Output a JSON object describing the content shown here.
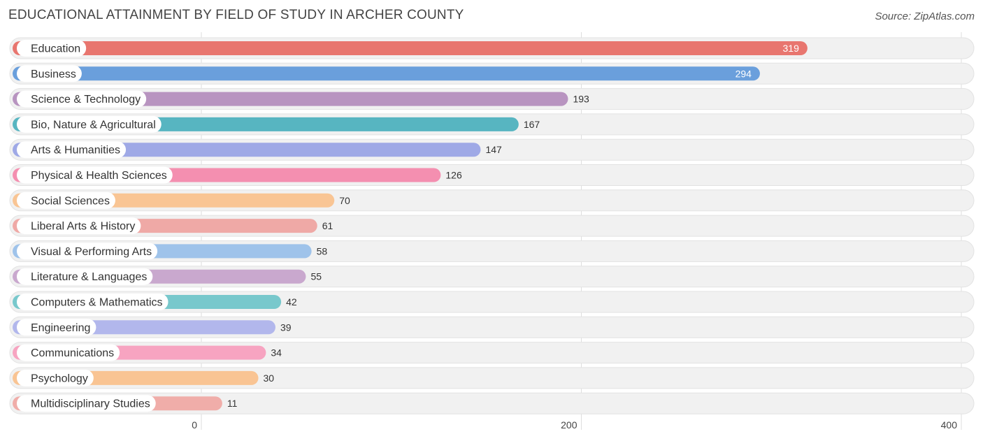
{
  "title": "EDUCATIONAL ATTAINMENT BY FIELD OF STUDY IN ARCHER COUNTY",
  "source": "Source: ZipAtlas.com",
  "chart_data": {
    "type": "bar",
    "orientation": "horizontal",
    "title": "EDUCATIONAL ATTAINMENT BY FIELD OF STUDY IN ARCHER COUNTY",
    "categories": [
      "Education",
      "Business",
      "Science & Technology",
      "Bio, Nature & Agricultural",
      "Arts & Humanities",
      "Physical & Health Sciences",
      "Social Sciences",
      "Liberal Arts & History",
      "Visual & Performing Arts",
      "Literature & Languages",
      "Computers & Mathematics",
      "Engineering",
      "Communications",
      "Psychology",
      "Multidisciplinary Studies"
    ],
    "values": [
      319,
      294,
      193,
      167,
      147,
      126,
      70,
      61,
      58,
      55,
      42,
      39,
      34,
      30,
      11
    ],
    "colors": [
      "#e8766f",
      "#6a9fdc",
      "#b894c0",
      "#57b5c1",
      "#9fa9e6",
      "#f48fb0",
      "#f9c594",
      "#efa9a6",
      "#9fc3ea",
      "#c9a8ce",
      "#78c8cc",
      "#b2b7ec",
      "#f7a4c1",
      "#f9c493",
      "#f0ada9"
    ],
    "xticks": [
      0,
      200,
      400
    ],
    "xlim": [
      0,
      400
    ],
    "grid": true
  }
}
